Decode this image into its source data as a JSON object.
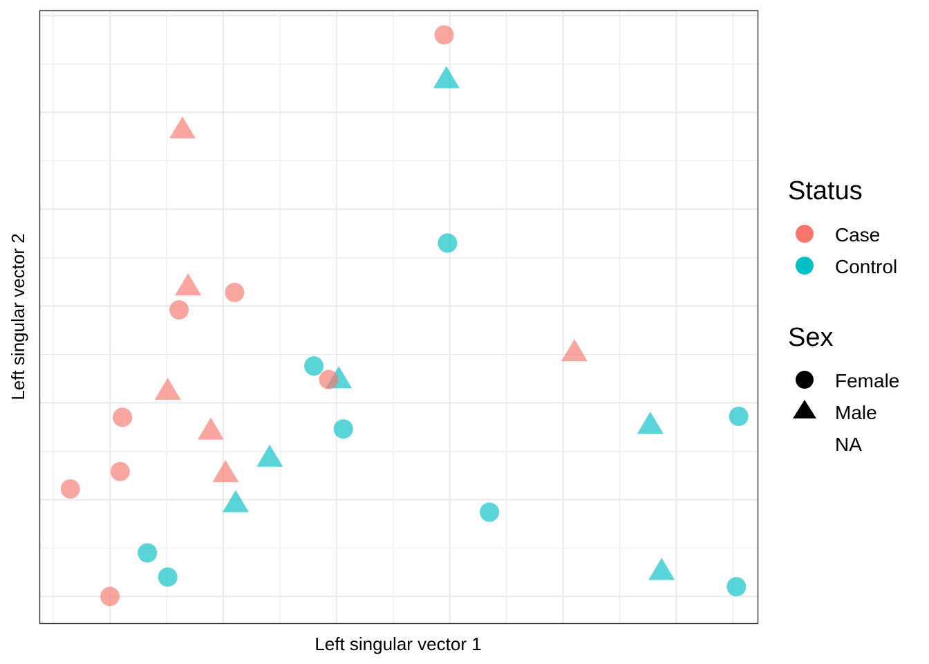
{
  "chart_data": {
    "type": "scatter",
    "xlabel": "Left singular vector 1",
    "ylabel": "Left singular vector 2",
    "xlim": [
      -0.62,
      5.72
    ],
    "ylim": [
      -0.28,
      6.05
    ],
    "grid": true,
    "legend_position": "right",
    "colors": {
      "Case": "#F8766D",
      "Control": "#00BFC4"
    },
    "legend": {
      "status": {
        "title": "Status",
        "items": [
          "Case",
          "Control"
        ]
      },
      "sex": {
        "title": "Sex",
        "items": [
          "Female",
          "Male",
          "NA"
        ]
      }
    },
    "points": [
      {
        "x": 2.95,
        "y": 5.8,
        "status": "Case",
        "sex": "Female"
      },
      {
        "x": 2.97,
        "y": 5.35,
        "status": "Control",
        "sex": "Male"
      },
      {
        "x": 0.64,
        "y": 4.83,
        "status": "Case",
        "sex": "Male"
      },
      {
        "x": 2.98,
        "y": 3.65,
        "status": "Control",
        "sex": "Female"
      },
      {
        "x": 0.69,
        "y": 3.21,
        "status": "Case",
        "sex": "Male"
      },
      {
        "x": 1.1,
        "y": 3.14,
        "status": "Case",
        "sex": "Female"
      },
      {
        "x": 0.61,
        "y": 2.96,
        "status": "Case",
        "sex": "Female"
      },
      {
        "x": 4.1,
        "y": 2.53,
        "status": "Case",
        "sex": "Male"
      },
      {
        "x": 1.8,
        "y": 2.38,
        "status": "Control",
        "sex": "Female"
      },
      {
        "x": 2.02,
        "y": 2.25,
        "status": "Control",
        "sex": "Male"
      },
      {
        "x": 1.93,
        "y": 2.24,
        "status": "Case",
        "sex": "Female"
      },
      {
        "x": 0.51,
        "y": 2.13,
        "status": "Case",
        "sex": "Male"
      },
      {
        "x": 0.11,
        "y": 1.85,
        "status": "Case",
        "sex": "Female"
      },
      {
        "x": 5.55,
        "y": 1.86,
        "status": "Control",
        "sex": "Female"
      },
      {
        "x": 4.77,
        "y": 1.78,
        "status": "Control",
        "sex": "Male"
      },
      {
        "x": 0.89,
        "y": 1.72,
        "status": "Case",
        "sex": "Male"
      },
      {
        "x": 2.06,
        "y": 1.73,
        "status": "Control",
        "sex": "Female"
      },
      {
        "x": 1.41,
        "y": 1.44,
        "status": "Control",
        "sex": "Male"
      },
      {
        "x": 0.09,
        "y": 1.29,
        "status": "Case",
        "sex": "Female"
      },
      {
        "x": 1.02,
        "y": 1.28,
        "status": "Case",
        "sex": "Male"
      },
      {
        "x": -0.35,
        "y": 1.11,
        "status": "Case",
        "sex": "Female"
      },
      {
        "x": 1.11,
        "y": 0.97,
        "status": "Control",
        "sex": "Male"
      },
      {
        "x": 3.35,
        "y": 0.87,
        "status": "Control",
        "sex": "Female"
      },
      {
        "x": 0.33,
        "y": 0.45,
        "status": "Control",
        "sex": "Female"
      },
      {
        "x": 4.87,
        "y": 0.27,
        "status": "Control",
        "sex": "Male"
      },
      {
        "x": 0.51,
        "y": 0.2,
        "status": "Control",
        "sex": "Female"
      },
      {
        "x": 5.53,
        "y": 0.1,
        "status": "Control",
        "sex": "Female"
      },
      {
        "x": 0.0,
        "y": 0.0,
        "status": "Case",
        "sex": "Female"
      }
    ]
  }
}
